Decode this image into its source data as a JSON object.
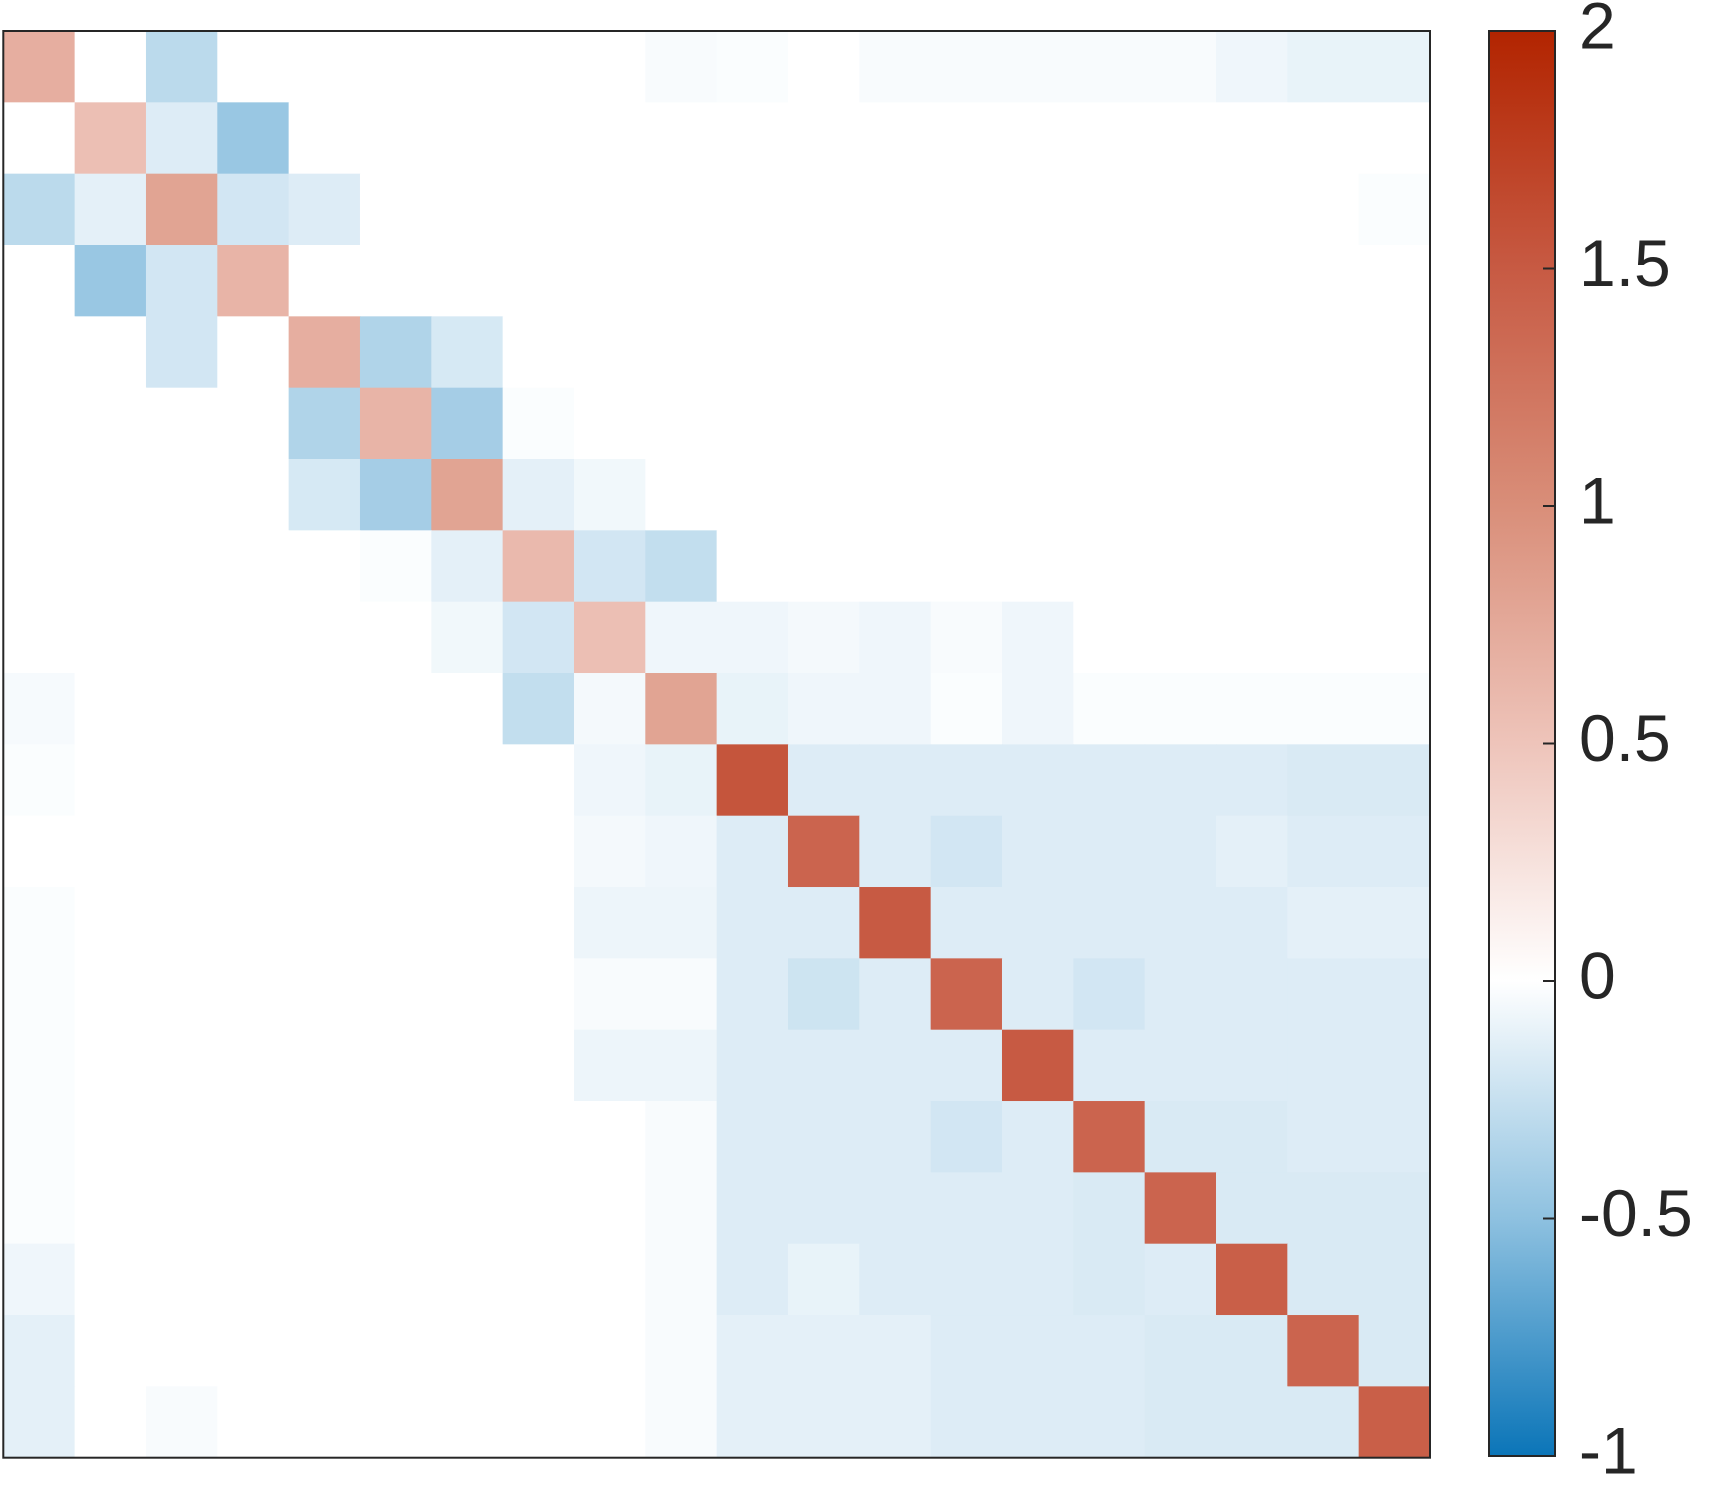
{
  "chart_data": {
    "type": "heatmap",
    "z": [
      [
        0.7,
        0,
        -0.3,
        0,
        0,
        0,
        0,
        0,
        0,
        -0.03,
        -0.02,
        0,
        -0.03,
        -0.03,
        -0.03,
        -0.03,
        -0.03,
        -0.07,
        -0.1,
        -0.1
      ],
      [
        0,
        0.55,
        -0.15,
        -0.45,
        0,
        0,
        0,
        0,
        0,
        0,
        0,
        0,
        0,
        0,
        0,
        0,
        0,
        0,
        0,
        0
      ],
      [
        -0.3,
        -0.12,
        0.8,
        -0.2,
        -0.15,
        0,
        0,
        0,
        0,
        0,
        0,
        0,
        0,
        0,
        0,
        0,
        0,
        0,
        0,
        -0.02
      ],
      [
        0,
        -0.45,
        -0.2,
        0.65,
        0,
        0,
        0,
        0,
        0,
        0,
        0,
        0,
        0,
        0,
        0,
        0,
        0,
        0,
        0,
        0
      ],
      [
        0,
        0,
        -0.2,
        0,
        0.7,
        -0.35,
        -0.18,
        0,
        0,
        0,
        0,
        0,
        0,
        0,
        0,
        0,
        0,
        0,
        0,
        0
      ],
      [
        0,
        0,
        0,
        0,
        -0.35,
        0.65,
        -0.4,
        -0.02,
        0,
        0,
        0,
        0,
        0,
        0,
        0,
        0,
        0,
        0,
        0,
        0
      ],
      [
        0,
        0,
        0,
        0,
        -0.18,
        -0.4,
        0.8,
        -0.12,
        -0.06,
        0,
        0,
        0,
        0,
        0,
        0,
        0,
        0,
        0,
        0,
        0
      ],
      [
        0,
        0,
        0,
        0,
        0,
        -0.02,
        -0.12,
        0.6,
        -0.2,
        -0.27,
        0,
        0,
        0,
        0,
        0,
        0,
        0,
        0,
        0,
        0
      ],
      [
        0,
        0,
        0,
        0,
        0,
        0,
        -0.06,
        -0.2,
        0.55,
        -0.07,
        -0.07,
        -0.05,
        -0.07,
        -0.03,
        -0.07,
        0,
        0,
        0,
        0,
        0
      ],
      [
        -0.04,
        0,
        0,
        0,
        0,
        0,
        0,
        -0.27,
        -0.05,
        0.8,
        -0.1,
        -0.07,
        -0.07,
        -0.02,
        -0.07,
        -0.02,
        -0.02,
        -0.02,
        -0.02,
        -0.02
      ],
      [
        -0.02,
        0,
        0,
        0,
        0,
        0,
        0,
        0,
        -0.07,
        -0.1,
        1.55,
        -0.15,
        -0.15,
        -0.15,
        -0.15,
        -0.15,
        -0.15,
        -0.15,
        -0.17,
        -0.17
      ],
      [
        0,
        0,
        0,
        0,
        0,
        0,
        0,
        0,
        -0.05,
        -0.07,
        -0.15,
        1.4,
        -0.15,
        -0.2,
        -0.15,
        -0.15,
        -0.15,
        -0.12,
        -0.15,
        -0.15
      ],
      [
        -0.02,
        0,
        0,
        0,
        0,
        0,
        0,
        0,
        -0.08,
        -0.08,
        -0.15,
        -0.15,
        1.5,
        -0.15,
        -0.15,
        -0.15,
        -0.15,
        -0.15,
        -0.12,
        -0.12
      ],
      [
        -0.02,
        0,
        0,
        0,
        0,
        0,
        0,
        0,
        -0.03,
        -0.03,
        -0.15,
        -0.22,
        -0.15,
        1.4,
        -0.15,
        -0.2,
        -0.15,
        -0.15,
        -0.15,
        -0.15
      ],
      [
        -0.02,
        0,
        0,
        0,
        0,
        0,
        0,
        0,
        -0.08,
        -0.08,
        -0.15,
        -0.15,
        -0.15,
        -0.15,
        1.5,
        -0.15,
        -0.15,
        -0.15,
        -0.15,
        -0.15
      ],
      [
        -0.02,
        0,
        0,
        0,
        0,
        0,
        0,
        0,
        0,
        -0.03,
        -0.15,
        -0.15,
        -0.15,
        -0.2,
        -0.15,
        1.4,
        -0.17,
        -0.17,
        -0.15,
        -0.15
      ],
      [
        -0.02,
        0,
        0,
        0,
        0,
        0,
        0,
        0,
        0,
        -0.03,
        -0.15,
        -0.15,
        -0.15,
        -0.15,
        -0.15,
        -0.17,
        1.4,
        -0.17,
        -0.17,
        -0.17
      ],
      [
        -0.07,
        0,
        0,
        0,
        0,
        0,
        0,
        0,
        0,
        -0.03,
        -0.15,
        -0.1,
        -0.15,
        -0.15,
        -0.15,
        -0.17,
        -0.15,
        1.45,
        -0.17,
        -0.17
      ],
      [
        -0.12,
        0,
        0,
        0,
        0,
        0,
        0,
        0,
        0,
        -0.03,
        -0.12,
        -0.12,
        -0.12,
        -0.15,
        -0.15,
        -0.15,
        -0.17,
        -0.17,
        1.4,
        -0.17
      ],
      [
        -0.12,
        0,
        -0.03,
        0,
        0,
        0,
        0,
        0,
        0,
        -0.03,
        -0.12,
        -0.12,
        -0.12,
        -0.15,
        -0.15,
        -0.15,
        -0.17,
        -0.17,
        -0.17,
        1.45
      ]
    ],
    "zlim": [
      -1,
      2
    ],
    "zticks": [
      -1,
      -0.5,
      0,
      0.5,
      1,
      1.5,
      2
    ],
    "colormap": [
      {
        "value": -1,
        "color": "#0b75b8"
      },
      {
        "value": -0.5,
        "color": "#8ec1e0"
      },
      {
        "value": 0,
        "color": "#ffffff"
      },
      {
        "value": 0.5,
        "color": "#eec4ba"
      },
      {
        "value": 1,
        "color": "#d98e79"
      },
      {
        "value": 1.5,
        "color": "#c75a43"
      },
      {
        "value": 2,
        "color": "#b22400"
      }
    ]
  }
}
